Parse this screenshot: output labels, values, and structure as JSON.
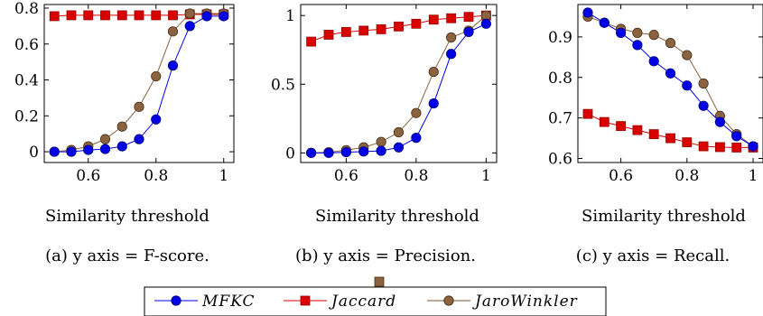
{
  "chart_data": [
    {
      "type": "line",
      "caption": "(a) y axis = F-score.",
      "xlabel": "Similarity threshold",
      "ylabel": "",
      "xlim": [
        0.47,
        1.03
      ],
      "ylim": [
        -0.06,
        0.82
      ],
      "xticks": [
        "0.6",
        "0.8",
        "1"
      ],
      "xtick_values": [
        0.6,
        0.8,
        1.0
      ],
      "yticks": [
        "0",
        "0.2",
        "0.4",
        "0.6",
        "0.8"
      ],
      "ytick_values": [
        0,
        0.2,
        0.4,
        0.6,
        0.8
      ],
      "x": [
        0.5,
        0.55,
        0.6,
        0.65,
        0.7,
        0.75,
        0.8,
        0.85,
        0.9,
        0.95,
        1.0
      ],
      "series": [
        {
          "name": "MFKC",
          "values": [
            0.0,
            0.0,
            0.01,
            0.015,
            0.03,
            0.07,
            0.18,
            0.48,
            0.7,
            0.755,
            0.755
          ]
        },
        {
          "name": "Jaccard",
          "values": [
            0.755,
            0.76,
            0.76,
            0.76,
            0.76,
            0.76,
            0.76,
            0.76,
            0.765,
            0.765,
            0.765
          ]
        },
        {
          "name": "JaroWinkler",
          "values": [
            0.0,
            0.01,
            0.03,
            0.07,
            0.14,
            0.25,
            0.42,
            0.67,
            0.77,
            0.77,
            0.77
          ]
        }
      ],
      "grid": false
    },
    {
      "type": "line",
      "caption": "(b) y axis = Precision.",
      "xlabel": "Similarity threshold",
      "ylabel": "",
      "xlim": [
        0.47,
        1.03
      ],
      "ylim": [
        -0.07,
        1.08
      ],
      "xticks": [
        "0.6",
        "0.8",
        "1"
      ],
      "xtick_values": [
        0.6,
        0.8,
        1.0
      ],
      "yticks": [
        "0",
        "0.5",
        "1"
      ],
      "ytick_values": [
        0,
        0.5,
        1.0
      ],
      "x": [
        0.5,
        0.55,
        0.6,
        0.65,
        0.7,
        0.75,
        0.8,
        0.85,
        0.9,
        0.95,
        1.0
      ],
      "series": [
        {
          "name": "MFKC",
          "values": [
            0.0,
            0.0,
            0.005,
            0.01,
            0.015,
            0.04,
            0.11,
            0.36,
            0.72,
            0.88,
            0.94
          ]
        },
        {
          "name": "Jaccard",
          "values": [
            0.81,
            0.86,
            0.88,
            0.89,
            0.9,
            0.92,
            0.94,
            0.97,
            0.98,
            0.99,
            1.0
          ]
        },
        {
          "name": "JaroWinkler",
          "values": [
            0.0,
            0.005,
            0.02,
            0.04,
            0.08,
            0.15,
            0.29,
            0.59,
            0.84,
            0.89,
            1.0
          ]
        }
      ],
      "grid": false
    },
    {
      "type": "line",
      "caption": "(c) y axis = Recall.",
      "xlabel": "Similarity threshold",
      "ylabel": "",
      "xlim": [
        0.47,
        1.03
      ],
      "ylim": [
        0.59,
        0.98
      ],
      "xticks": [
        "0.6",
        "0.8",
        "1"
      ],
      "xtick_values": [
        0.6,
        0.8,
        1.0
      ],
      "yticks": [
        "0.6",
        "0.7",
        "0.8",
        "0.9"
      ],
      "ytick_values": [
        0.6,
        0.7,
        0.8,
        0.9
      ],
      "x": [
        0.5,
        0.55,
        0.6,
        0.65,
        0.7,
        0.75,
        0.8,
        0.85,
        0.9,
        0.95,
        1.0
      ],
      "series": [
        {
          "name": "MFKC",
          "values": [
            0.96,
            0.935,
            0.91,
            0.88,
            0.84,
            0.81,
            0.78,
            0.73,
            0.69,
            0.655,
            0.63
          ]
        },
        {
          "name": "Jaccard",
          "values": [
            0.71,
            0.69,
            0.68,
            0.67,
            0.66,
            0.65,
            0.64,
            0.63,
            0.628,
            0.627,
            0.627
          ]
        },
        {
          "name": "JaroWinkler",
          "values": [
            0.95,
            0.935,
            0.92,
            0.91,
            0.905,
            0.885,
            0.855,
            0.785,
            0.705,
            0.66,
            0.63
          ]
        }
      ],
      "grid": false
    }
  ],
  "legend": {
    "placement": "bottom-center",
    "entries": [
      {
        "label": "MFKC",
        "color": "#0000e6",
        "marker": "circle"
      },
      {
        "label": "Jaccard",
        "color": "#d90000",
        "marker": "square"
      },
      {
        "label": "JaroWinkler",
        "color": "#7f5432",
        "marker": "circle"
      }
    ]
  },
  "colors": {
    "MFKC": "#0000e6",
    "MFKC_edge": "#00007a",
    "Jaccard": "#d90000",
    "Jaccard_edge": "#990000",
    "JaroWinkler": "#8b6340",
    "JaroWinkler_edge": "#4a2e18"
  }
}
